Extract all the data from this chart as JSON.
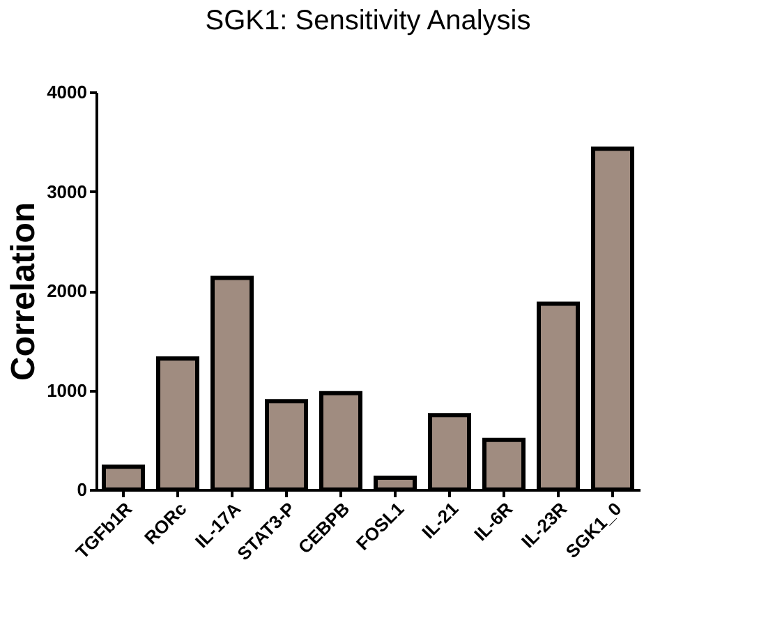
{
  "chart_data": {
    "type": "bar",
    "title": "SGK1: Sensitivity Analysis",
    "ylabel": "Correlation",
    "categories": [
      "TGFb1R",
      "RORc",
      "IL-17A",
      "STAT3-P",
      "CEBPB",
      "FOSL1",
      "IL-21",
      "IL-6R",
      "IL-23R",
      "SGK1_0"
    ],
    "values": [
      230,
      1320,
      2130,
      890,
      970,
      120,
      750,
      500,
      1870,
      3430
    ],
    "color": "#a08c80",
    "ylim": [
      0,
      4000
    ],
    "yticks": [
      0,
      1000,
      2000,
      3000,
      4000
    ],
    "grid": false
  }
}
